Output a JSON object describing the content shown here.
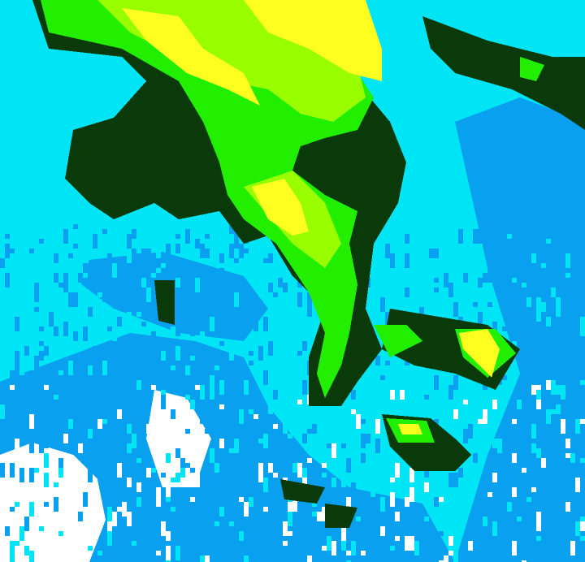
{
  "radar": {
    "palette": {
      "light": "#00e5f5",
      "moderate_blue": "#0aa0f0",
      "clear": "#ffffff",
      "heavy_dark": "#0a3a0a",
      "strong_green": "#22ee00",
      "very_strong_lime": "#99ff00",
      "intense_yellow": "#ffff20"
    }
  }
}
